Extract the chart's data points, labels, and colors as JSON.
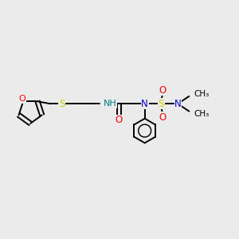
{
  "bg_color": "#ebebeb",
  "bond_color": "#000000",
  "O_color": "#ff0000",
  "N_color": "#0000cd",
  "S_color": "#cccc00",
  "H_color": "#008080",
  "line_width": 1.4,
  "figsize": [
    3.0,
    3.0
  ],
  "dpi": 100,
  "xlim": [
    0,
    10
  ],
  "ylim": [
    0,
    10
  ]
}
